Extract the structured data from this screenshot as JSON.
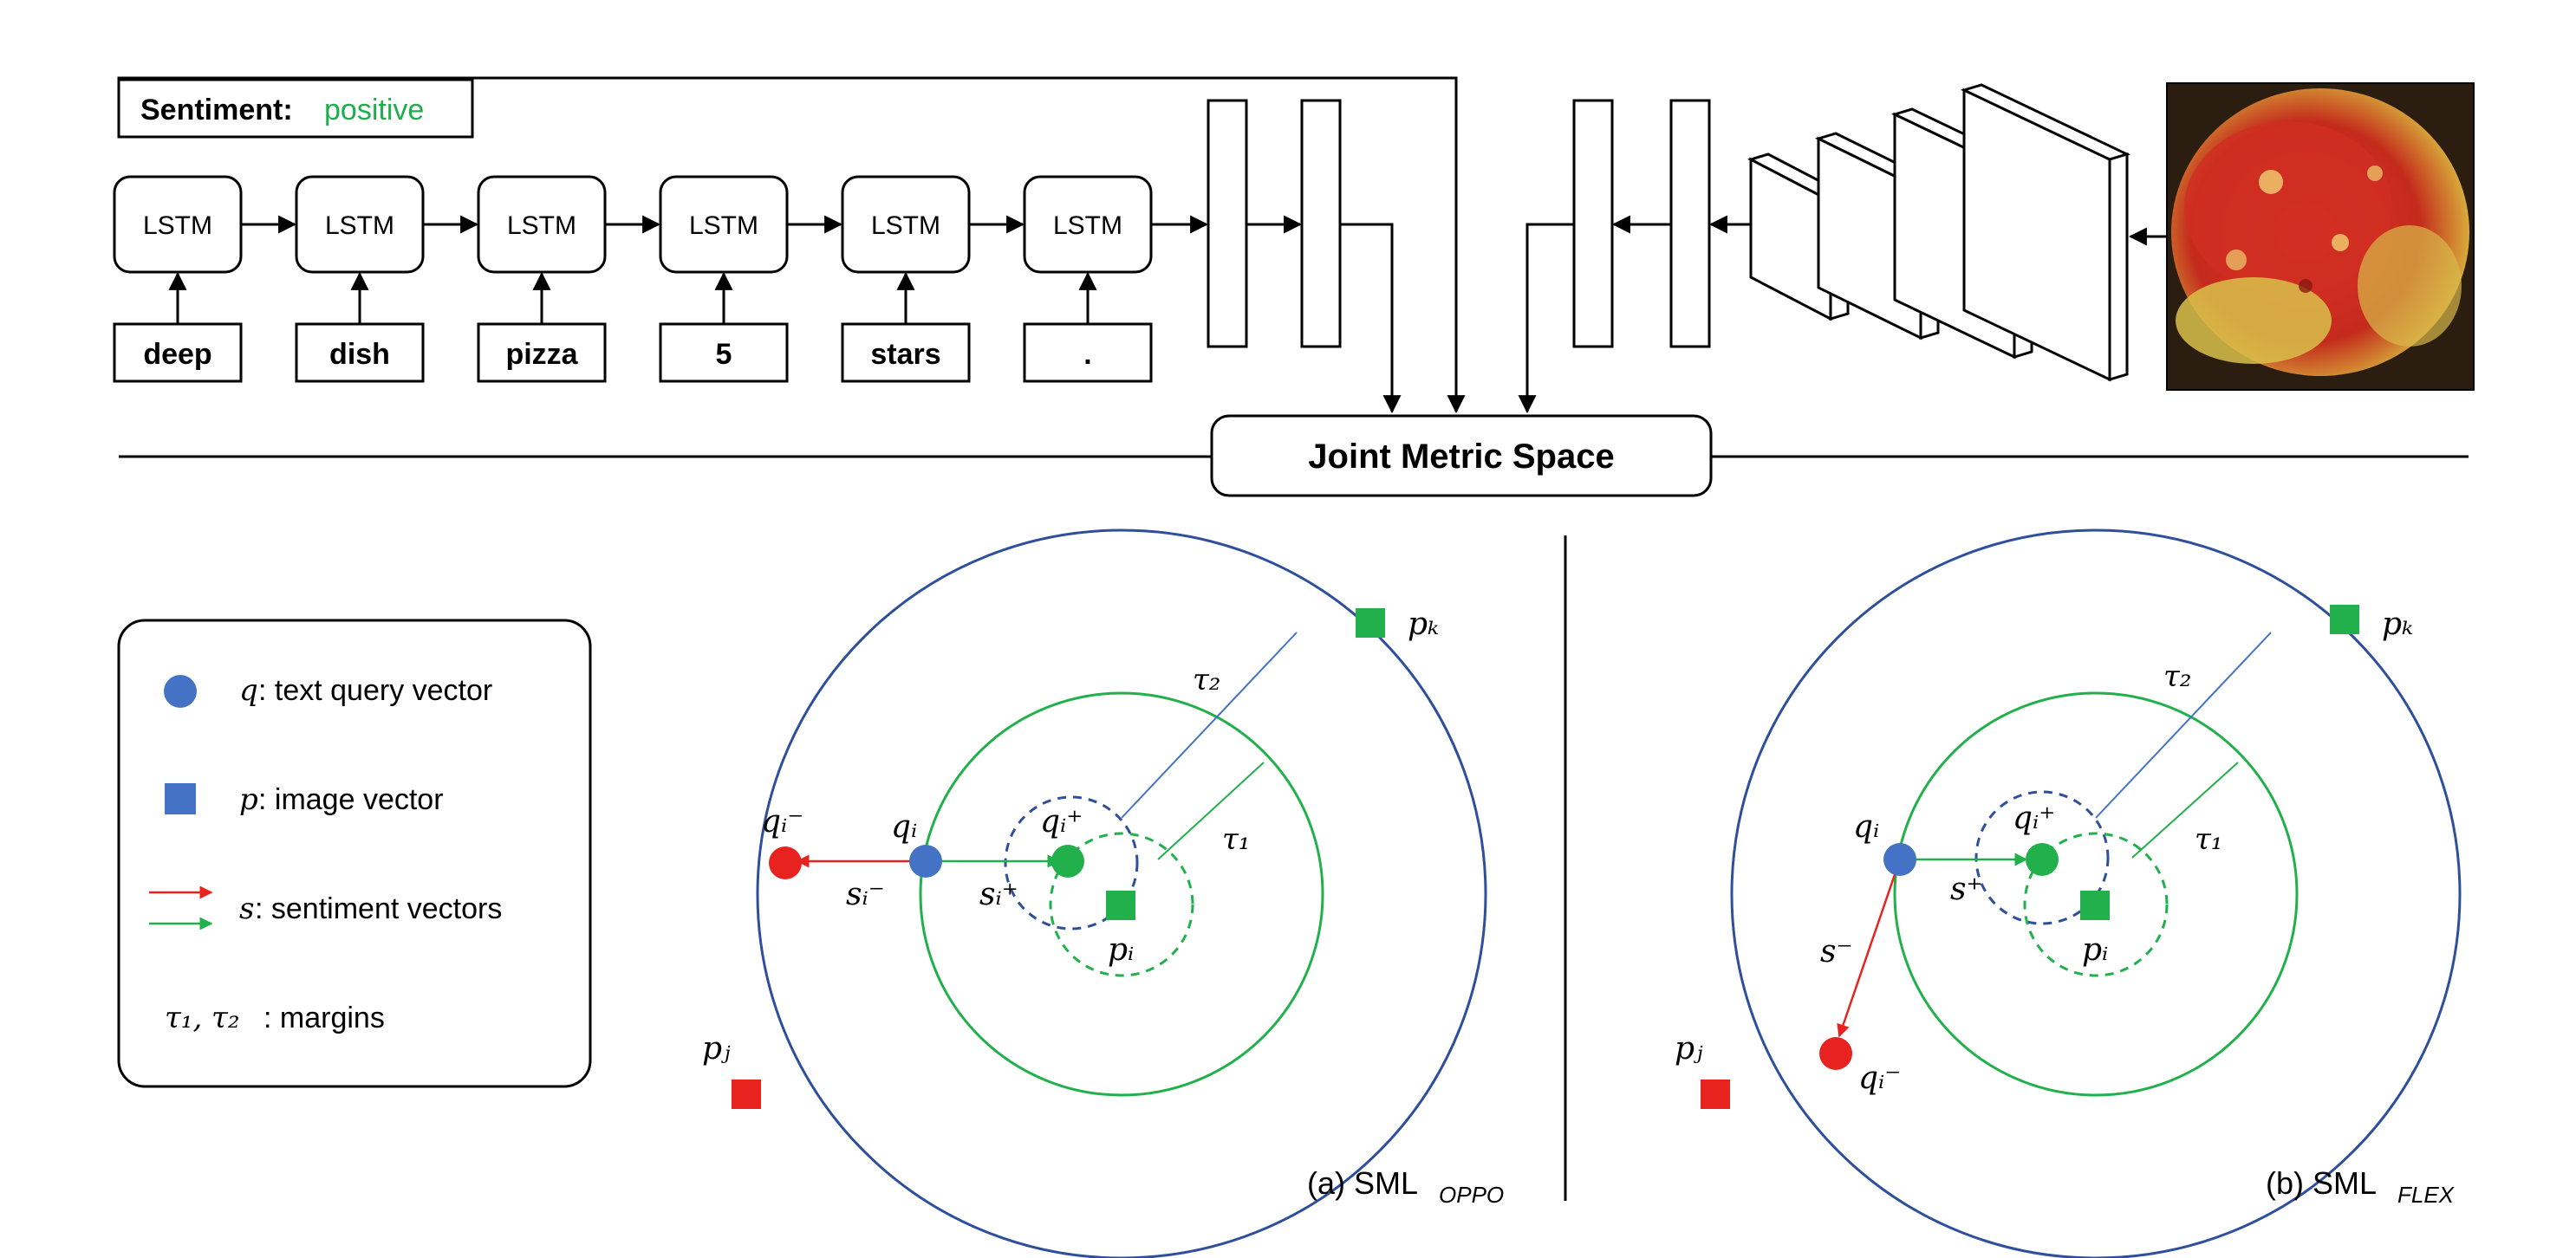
{
  "header": {
    "sentiment_label": "Sentiment:",
    "sentiment_value": "positive",
    "sentiment_color": "#1fae4c"
  },
  "lstm": {
    "cell_label": "LSTM",
    "words": [
      "deep",
      "dish",
      "pizza",
      "5",
      "stars",
      "."
    ]
  },
  "joint": {
    "label": "Joint Metric Space"
  },
  "legend": {
    "q_sym": "q",
    "q_text": ": text query vector",
    "p_sym": "p",
    "p_text": ": image vector",
    "s_sym": "s",
    "s_text": ": sentiment vectors",
    "tau_sym": "τ₁, τ₂",
    "tau_text": ": margins"
  },
  "panel_a": {
    "caption_prefix": "(a) SML",
    "caption_sub": "OPPO",
    "pk": "pₖ",
    "pj": "pⱼ",
    "pi": "pᵢ",
    "qi": "qᵢ",
    "qi_plus": "qᵢ⁺",
    "qi_minus": "qᵢ⁻",
    "si_plus": "sᵢ⁺",
    "si_minus": "sᵢ⁻",
    "tau1": "τ₁",
    "tau2": "τ₂"
  },
  "panel_b": {
    "caption_prefix": "(b) SML",
    "caption_sub": "FLEX",
    "pk": "pₖ",
    "pj": "pⱼ",
    "pi": "pᵢ",
    "qi": "qᵢ",
    "qi_plus": "qᵢ⁺",
    "qi_minus": "qᵢ⁻",
    "s_plus": "s⁺",
    "s_minus": "s⁻",
    "tau1": "τ₁",
    "tau2": "τ₂"
  },
  "colors": {
    "blue_circle": "#2e4f9c",
    "green": "#21b04b",
    "red": "#e8231f",
    "query_blue": "#4472c4"
  },
  "icons": {
    "photo": "pizza-photo"
  }
}
